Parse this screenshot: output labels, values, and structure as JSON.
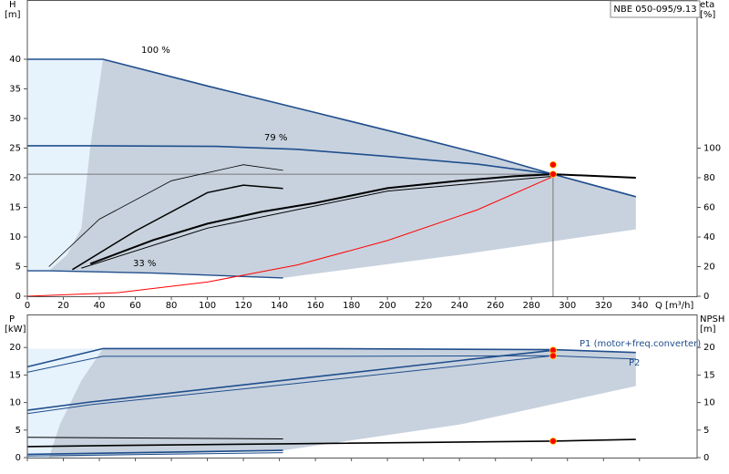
{
  "chart_data": [
    {
      "type": "line",
      "title": "NBE 050-095/9.13",
      "ylabel": [
        "H",
        "[m]"
      ],
      "y2label": [
        "eta",
        "[%]"
      ],
      "xlabel": "Q [m³/h]",
      "xlim": [
        0,
        372
      ],
      "xticks": [
        0,
        20,
        40,
        60,
        80,
        100,
        120,
        140,
        160,
        180,
        200,
        220,
        240,
        260,
        280,
        300,
        320,
        340
      ],
      "ylim": [
        0,
        50
      ],
      "yticks": [
        0,
        5,
        10,
        15,
        20,
        25,
        30,
        35,
        40
      ],
      "y2lim": [
        0,
        200
      ],
      "y2ticks": [
        0,
        20,
        40,
        60,
        80,
        100
      ],
      "crosshair": {
        "x": 292,
        "y": 20.6
      },
      "series": [
        {
          "kind": "area",
          "color": "#e6f2fc",
          "x": [
            0,
            42,
            35,
            30,
            22,
            12,
            0
          ],
          "values": [
            40,
            40,
            25.4,
            11.5,
            7,
            4.3,
            4.3
          ]
        },
        {
          "kind": "area",
          "color": "#c8d2de",
          "x": [
            42,
            100,
            160,
            220,
            260,
            292,
            338,
            338,
            240,
            142,
            70,
            12,
            22,
            30,
            35
          ],
          "values": [
            40,
            35.5,
            31,
            26.5,
            23.4,
            20.6,
            16.8,
            11.3,
            7,
            3.1,
            3.9,
            4.3,
            7,
            11.5,
            25.4
          ]
        },
        {
          "name": "100 %",
          "color": "#1f4e8c",
          "width": 1.6,
          "x": [
            0,
            42,
            100,
            160,
            220,
            260,
            292,
            338
          ],
          "values": [
            40,
            40,
            35.5,
            31,
            26.5,
            23.4,
            20.6,
            16.8
          ]
        },
        {
          "name": "79 %",
          "color": "#1f4e8c",
          "width": 1.6,
          "x": [
            0,
            35,
            105,
            150,
            200,
            250,
            292
          ],
          "values": [
            25.4,
            25.4,
            25.3,
            24.8,
            23.6,
            22.3,
            20.6
          ]
        },
        {
          "name": "33 %",
          "color": "#1f4e8c",
          "width": 1.4,
          "x": [
            0,
            12,
            70,
            142
          ],
          "values": [
            4.3,
            4.3,
            3.9,
            3.1
          ]
        },
        {
          "color": "#ff0000",
          "width": 1,
          "x": [
            0,
            50,
            100,
            150,
            200,
            250,
            292
          ],
          "values": [
            0,
            0.6,
            2.4,
            5.3,
            9.4,
            14.6,
            20.2
          ]
        },
        {
          "color": "#000000",
          "width": 2,
          "axis": "y2",
          "x": [
            35,
            70,
            100,
            130,
            160,
            200,
            240,
            270,
            292,
            338
          ],
          "values": [
            22,
            38,
            49,
            57,
            63,
            73,
            78,
            81,
            82.4,
            80
          ]
        },
        {
          "color": "#000000",
          "width": 1,
          "axis": "y2",
          "x": [
            30,
            100,
            200,
            292
          ],
          "values": [
            19,
            46,
            71,
            81
          ]
        },
        {
          "color": "#000000",
          "width": 1.5,
          "axis": "y2",
          "x": [
            25,
            60,
            100,
            120,
            142
          ],
          "values": [
            18,
            44,
            70,
            75,
            72.8
          ]
        },
        {
          "color": "#000000",
          "width": 0.8,
          "axis": "y2",
          "x": [
            12,
            40,
            80,
            120,
            142
          ],
          "values": [
            20,
            52,
            78,
            88.8,
            85
          ]
        },
        {
          "kind": "points",
          "color": "#ff0000",
          "x": [
            292,
            292
          ],
          "values": [
            20.6,
            22.2
          ]
        }
      ]
    },
    {
      "type": "line",
      "ylabel": [
        "P",
        "[kW]"
      ],
      "y2label": [
        "NPSH",
        "[m]"
      ],
      "xlim": [
        0,
        372
      ],
      "ylim": [
        0,
        26
      ],
      "yticks": [
        0,
        5,
        10,
        15,
        20
      ],
      "y2lim": [
        0,
        26
      ],
      "y2ticks": [
        0,
        5,
        10,
        15,
        20
      ],
      "series": [
        {
          "kind": "area",
          "color": "#e6f2fc",
          "x": [
            0,
            42,
            30,
            18,
            12,
            0
          ],
          "values": [
            19.8,
            19.8,
            14,
            6,
            0,
            0
          ]
        },
        {
          "kind": "area",
          "color": "#c8d2de",
          "x": [
            42,
            160,
            292,
            338,
            338,
            240,
            142,
            12,
            18,
            30
          ],
          "values": [
            19.8,
            19.8,
            19.6,
            19.1,
            13,
            6,
            1.3,
            0,
            6,
            14
          ]
        },
        {
          "name": "P1 (motor+freq.converter)",
          "color": "#1f4e8c",
          "width": 1.6,
          "x": [
            0,
            42,
            160,
            292,
            338
          ],
          "values": [
            16.5,
            19.8,
            19.8,
            19.6,
            19.1
          ]
        },
        {
          "name": "P2",
          "color": "#1f4e8c",
          "width": 1,
          "x": [
            0,
            42,
            160,
            292,
            338
          ],
          "values": [
            15.5,
            18.4,
            18.4,
            18.5,
            17.9
          ]
        },
        {
          "color": "#1f4e8c",
          "width": 1.6,
          "x": [
            0,
            35,
            150,
            250,
            292
          ],
          "values": [
            8.6,
            10.1,
            14.3,
            18,
            19.5
          ]
        },
        {
          "color": "#1f4e8c",
          "width": 1,
          "x": [
            0,
            35,
            150,
            250,
            292
          ],
          "values": [
            8,
            9.6,
            13.5,
            17,
            18.5
          ]
        },
        {
          "color": "#1f4e8c",
          "width": 1.6,
          "x": [
            0,
            142
          ],
          "values": [
            0.6,
            1.3
          ]
        },
        {
          "color": "#1f4e8c",
          "width": 1,
          "x": [
            0,
            142
          ],
          "values": [
            0.3,
            0.9
          ]
        },
        {
          "color": "#000000",
          "width": 1.6,
          "axis": "y2",
          "x": [
            0,
            50,
            142,
            292,
            338
          ],
          "values": [
            2,
            2.2,
            2.5,
            3,
            3.3
          ]
        },
        {
          "color": "#000000",
          "width": 1,
          "axis": "y2",
          "x": [
            0,
            142
          ],
          "values": [
            3.7,
            3.4
          ]
        },
        {
          "kind": "points",
          "color": "#ff0000",
          "x": [
            292,
            292,
            292
          ],
          "values": [
            19.5,
            18.5,
            3
          ]
        }
      ]
    }
  ]
}
